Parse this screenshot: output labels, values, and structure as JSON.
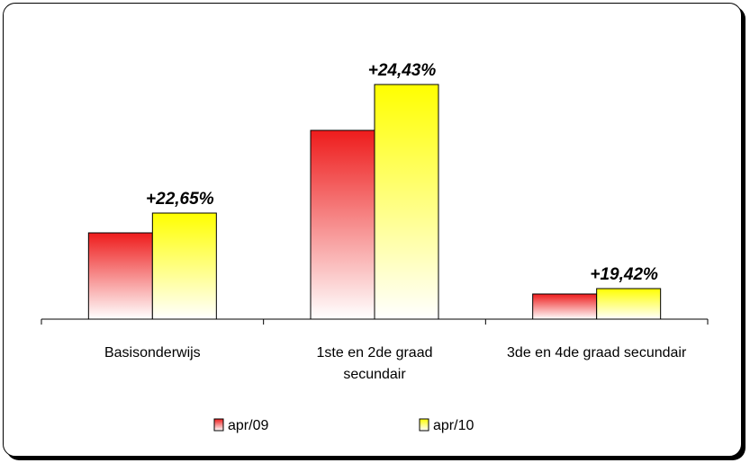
{
  "chart_data": {
    "type": "bar",
    "categories": [
      [
        "Basisonderwijs"
      ],
      [
        "1ste en 2de graad",
        "secundair"
      ],
      [
        "3de en 4de graad secundair"
      ]
    ],
    "series": [
      {
        "name": "apr/09",
        "values": [
          96,
          210,
          28
        ]
      },
      {
        "name": "apr/10",
        "values": [
          118,
          261,
          34
        ]
      }
    ],
    "data_labels": [
      "+22,65%",
      "+24,43%",
      "+19,42%"
    ],
    "legend_position": "bottom",
    "colors": {
      "apr09_top": "#ee1c1c",
      "apr09_bottom": "#ffffff",
      "apr10_top": "#ffff00",
      "apr10_bottom": "#ffffff"
    }
  }
}
